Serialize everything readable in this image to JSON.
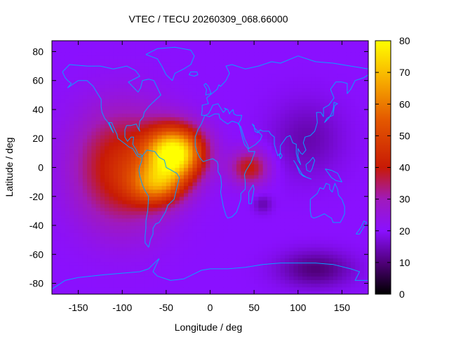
{
  "chart_data": {
    "type": "heatmap",
    "title": "VTEC / TECU 20260309_068.66000",
    "xlabel": "Longitude / deg",
    "ylabel": "Latitude / deg",
    "xlim": [
      -180,
      180
    ],
    "ylim": [
      -87.5,
      87.5
    ],
    "x_ticks": [
      -150,
      -100,
      -50,
      0,
      50,
      100,
      150
    ],
    "x_tick_labels": [
      "-150",
      "-100",
      "-50",
      "0",
      "50",
      "100",
      "150"
    ],
    "y_ticks": [
      -80,
      -60,
      -40,
      -20,
      0,
      20,
      40,
      60,
      80
    ],
    "y_tick_labels": [
      "-80",
      "-60",
      "-40",
      "-20",
      "0",
      "20",
      "40",
      "60",
      "80"
    ],
    "colorbar": {
      "range": [
        0,
        80
      ],
      "ticks": [
        0,
        10,
        20,
        30,
        40,
        50,
        60,
        70,
        80
      ],
      "tick_labels": [
        "0",
        "10",
        "20",
        "30",
        "40",
        "50",
        "60",
        "70",
        "80"
      ],
      "colormap": "black-purple-red-orange-yellow",
      "colormap_stops": [
        {
          "value": 0,
          "color": "#000000"
        },
        {
          "value": 10,
          "color": "#50007a"
        },
        {
          "value": 20,
          "color": "#8a10ff"
        },
        {
          "value": 30,
          "color": "#a01abb"
        },
        {
          "value": 40,
          "color": "#c81a05"
        },
        {
          "value": 55,
          "color": "#e45800"
        },
        {
          "value": 68,
          "color": "#f8b000"
        },
        {
          "value": 80,
          "color": "#ffff00"
        }
      ]
    },
    "field": {
      "background_tecu": 20,
      "features": [
        {
          "name": "equatorial anomaly core",
          "lon": -40,
          "lat": 10,
          "peak_tecu": 58,
          "lon_spread_deg": 32,
          "lat_spread_deg": 18
        },
        {
          "name": "southern crest",
          "lon": -60,
          "lat": -12,
          "peak_tecu": 28,
          "lon_spread_deg": 30,
          "lat_spread_deg": 14
        },
        {
          "name": "western broad enhancement",
          "lon": -100,
          "lat": 0,
          "peak_tecu": 24,
          "lon_spread_deg": 55,
          "lat_spread_deg": 40
        },
        {
          "name": "eastern tongue",
          "lon": 45,
          "lat": 0,
          "peak_tecu": 20,
          "lon_spread_deg": 22,
          "lat_spread_deg": 12
        },
        {
          "name": "eastern trough",
          "lon": 110,
          "lat": 20,
          "peak_tecu": -6,
          "lon_spread_deg": 40,
          "lat_spread_deg": 25
        },
        {
          "name": "south pacific trough",
          "lon": 120,
          "lat": -70,
          "peak_tecu": -10,
          "lon_spread_deg": 40,
          "lat_spread_deg": 12
        },
        {
          "name": "indian ocean low",
          "lon": 60,
          "lat": -25,
          "peak_tecu": -6,
          "lon_spread_deg": 10,
          "lat_spread_deg": 6
        }
      ]
    },
    "overlay": "coastlines",
    "colors": {
      "coastline": "#0aa0ff",
      "frame": "#000000",
      "background": "#ffffff"
    }
  }
}
